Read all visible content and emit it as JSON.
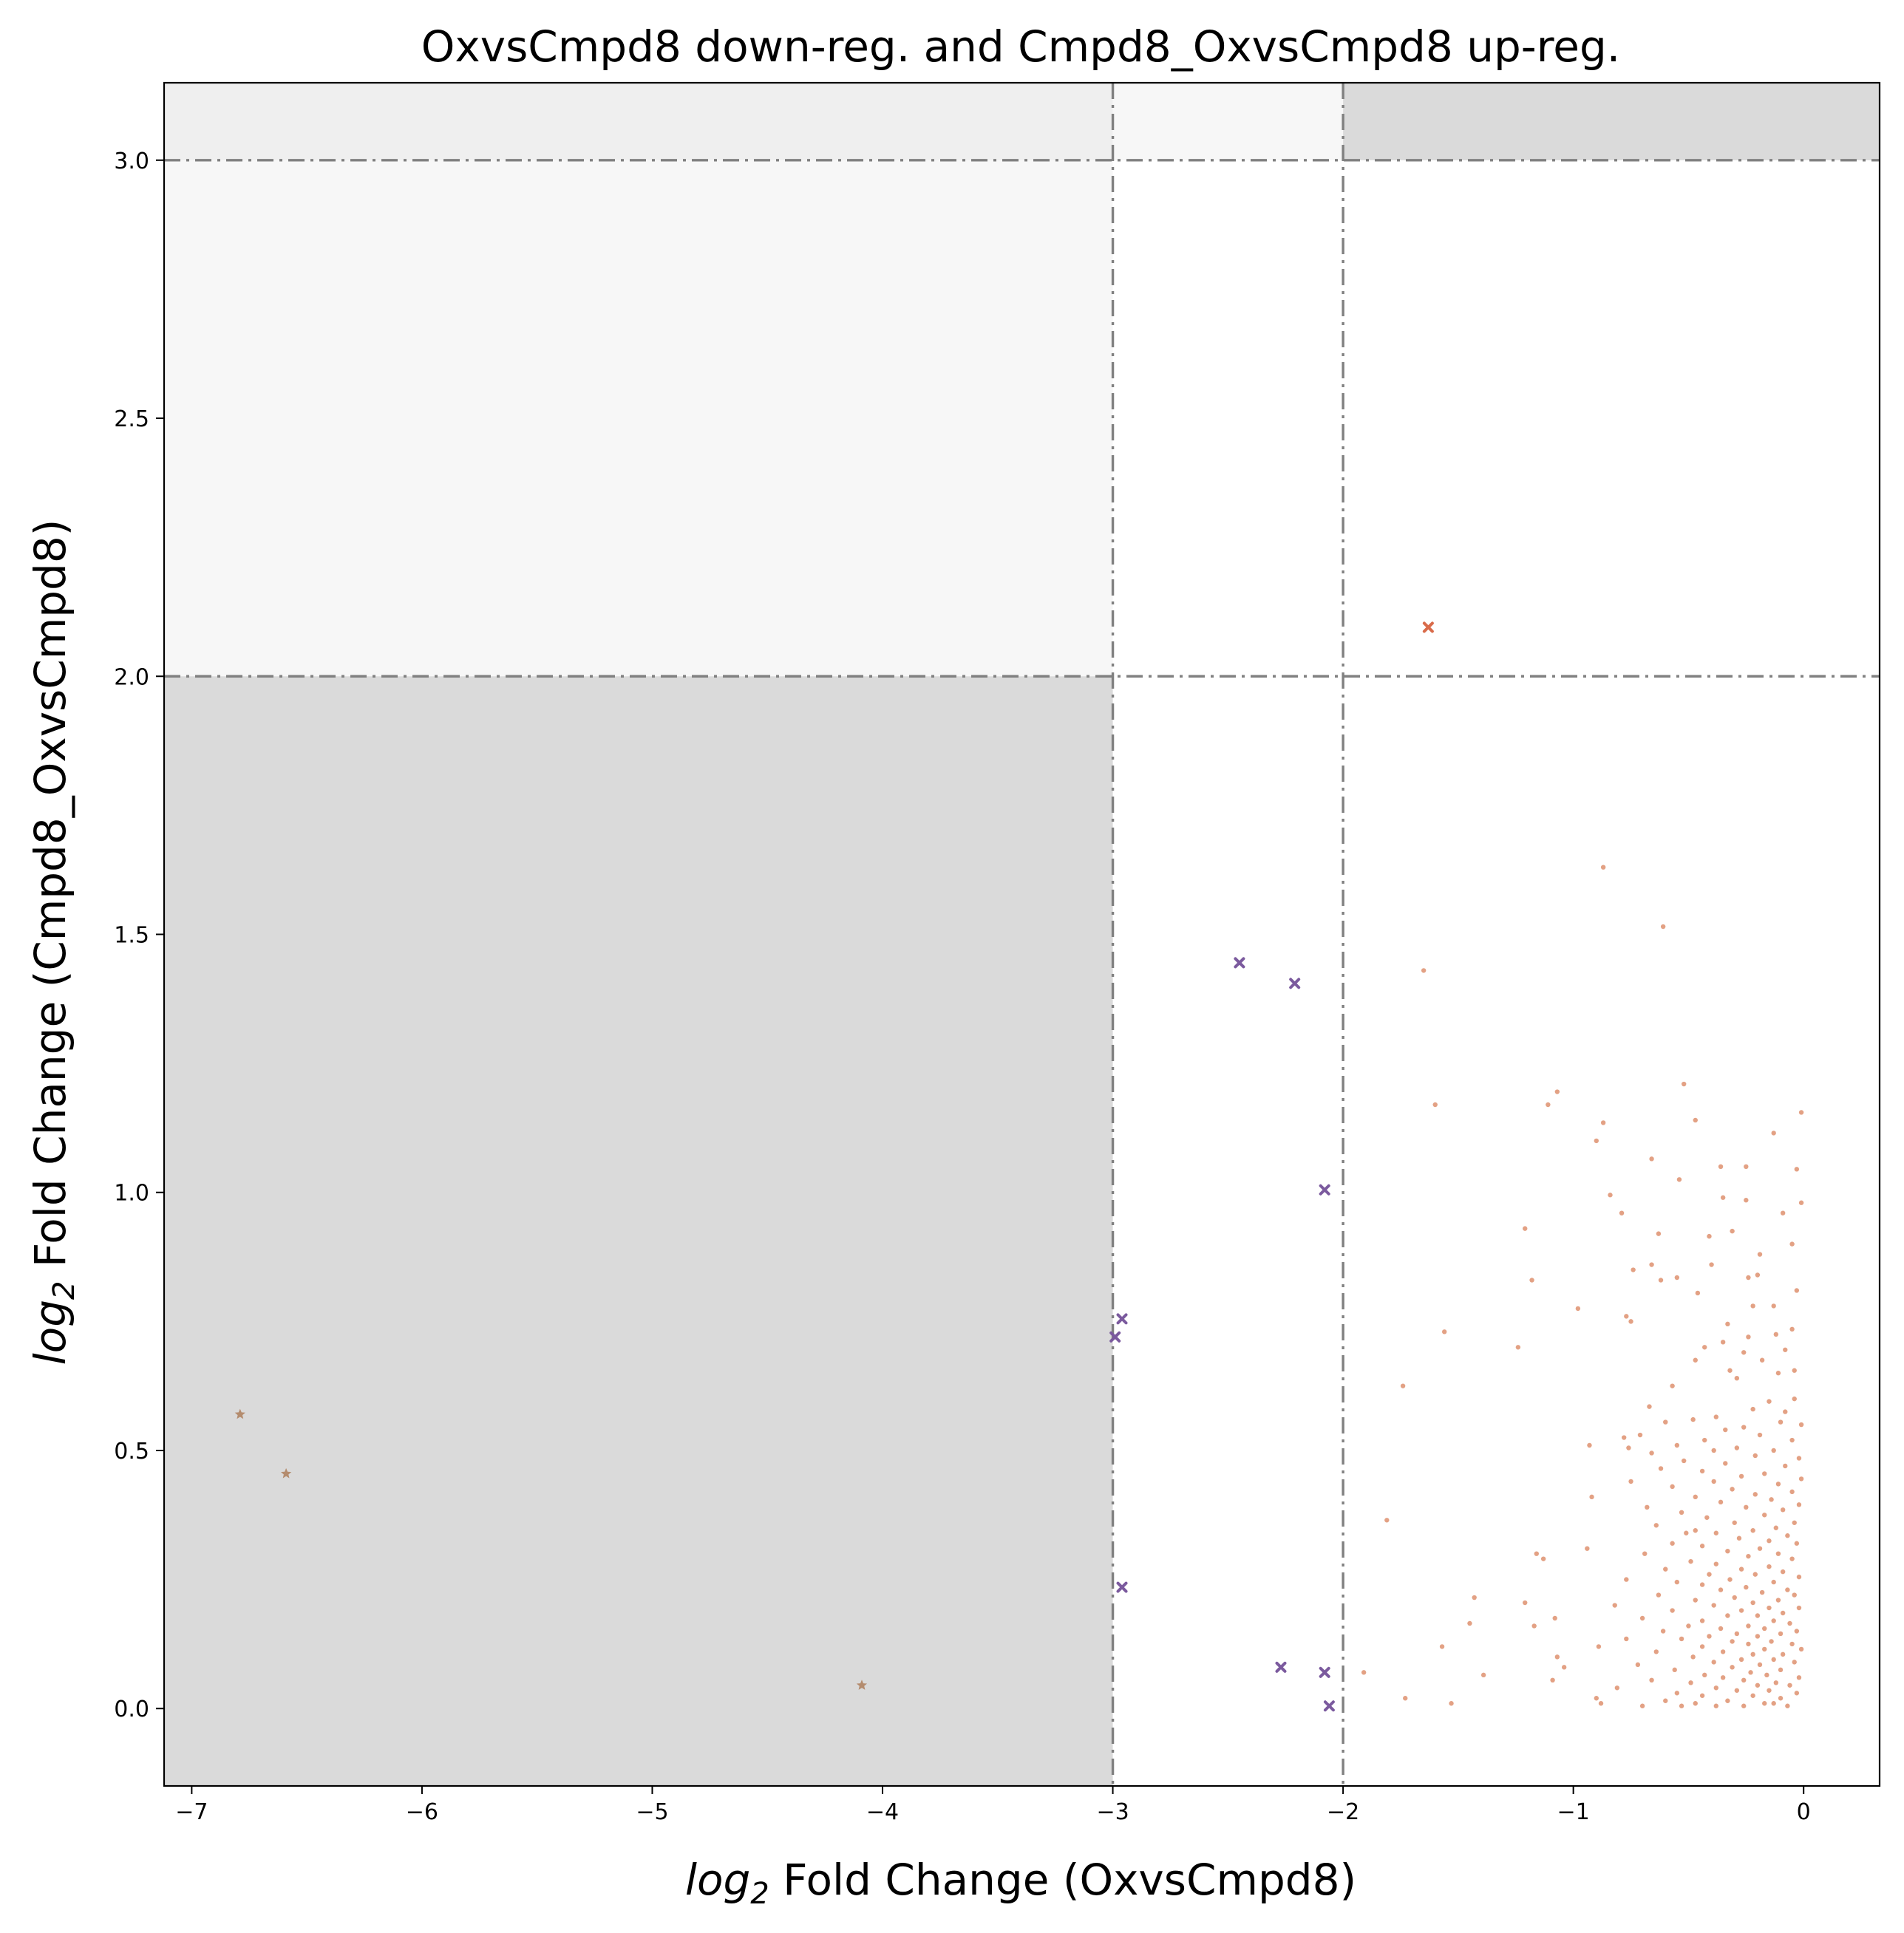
{
  "chart_data": {
    "type": "scatter",
    "title": "OxvsCmpd8 down-reg. and Cmpd8_OxvsCmpd8 up-reg.",
    "xlabel": {
      "log_text": "log",
      "subscript": "2",
      "rest": " Fold Change (OxvsCmpd8)"
    },
    "ylabel": {
      "log_text": "log",
      "subscript": "2",
      "rest": " Fold Change (Cmpd8_OxvsCmpd8)"
    },
    "xlim": [
      -7.12,
      0.33
    ],
    "ylim": [
      -0.15,
      3.15
    ],
    "xticks": [
      -7,
      -6,
      -5,
      -4,
      -3,
      -2,
      -1,
      0
    ],
    "xtick_labels": [
      "−7",
      "−6",
      "−5",
      "−4",
      "−3",
      "−2",
      "−1",
      "0"
    ],
    "yticks": [
      0.0,
      0.5,
      1.0,
      1.5,
      2.0,
      2.5,
      3.0
    ],
    "ytick_labels": [
      "0.0",
      "0.5",
      "1.0",
      "1.5",
      "2.0",
      "2.5",
      "3.0"
    ],
    "grid": false,
    "thresholds": {
      "x": [
        -3,
        -2
      ],
      "y": [
        2,
        3
      ]
    },
    "regions": [
      {
        "x": [
          -7.12,
          -3
        ],
        "y": [
          3,
          3.15
        ],
        "color": "#efefef"
      },
      {
        "x": [
          -3,
          -2
        ],
        "y": [
          3,
          3.15
        ],
        "color": "#f7f7f7"
      },
      {
        "x": [
          -2,
          0.33
        ],
        "y": [
          3,
          3.15
        ],
        "color": "#dadada"
      },
      {
        "x": [
          -7.12,
          -3
        ],
        "y": [
          2,
          3
        ],
        "color": "#f7f7f7"
      },
      {
        "x": [
          -7.12,
          -3
        ],
        "y": [
          -0.15,
          2
        ],
        "color": "#dadada"
      }
    ],
    "colors": {
      "orange": "#d9825b",
      "orange_highlight": "#d96b4a",
      "purple": "#7b5a9e",
      "tan": "#b48c6e",
      "threshold_line": "#808080"
    },
    "series": [
      {
        "marker": "star",
        "color": "#b48c6e",
        "points": [
          [
            -6.79,
            0.57
          ],
          [
            -6.59,
            0.455
          ],
          [
            -4.09,
            0.045
          ]
        ]
      },
      {
        "marker": "x",
        "color": "#7b5a9e",
        "points": [
          [
            -2.45,
            1.445
          ],
          [
            -2.21,
            1.405
          ],
          [
            -2.08,
            1.005
          ],
          [
            -2.96,
            0.755
          ],
          [
            -2.99,
            0.72
          ],
          [
            -2.96,
            0.235
          ],
          [
            -2.27,
            0.08
          ],
          [
            -2.08,
            0.07
          ],
          [
            -2.06,
            0.005
          ]
        ]
      },
      {
        "marker": "x",
        "color": "#d96b4a",
        "points": [
          [
            -1.63,
            2.095
          ]
        ]
      },
      {
        "marker": "dot",
        "color": "#d9825b",
        "points": [
          [
            -0.87,
            1.63
          ],
          [
            -0.61,
            1.515
          ],
          [
            -1.65,
            1.43
          ],
          [
            -0.52,
            1.21
          ],
          [
            -1.07,
            1.195
          ],
          [
            -1.6,
            1.17
          ],
          [
            -1.11,
            1.17
          ],
          [
            -0.01,
            1.155
          ],
          [
            -0.47,
            1.14
          ],
          [
            -0.87,
            1.135
          ],
          [
            -0.13,
            1.115
          ],
          [
            -0.9,
            1.1
          ],
          [
            -0.66,
            1.065
          ],
          [
            -0.36,
            1.05
          ],
          [
            -0.25,
            1.05
          ],
          [
            -0.03,
            1.045
          ],
          [
            -0.54,
            1.025
          ],
          [
            -0.84,
            0.995
          ],
          [
            -0.35,
            0.99
          ],
          [
            -0.25,
            0.985
          ],
          [
            -0.01,
            0.98
          ],
          [
            -0.79,
            0.96
          ],
          [
            -0.09,
            0.96
          ],
          [
            -1.21,
            0.93
          ],
          [
            -0.31,
            0.925
          ],
          [
            -0.63,
            0.92
          ],
          [
            -0.41,
            0.915
          ],
          [
            -0.05,
            0.9
          ],
          [
            -0.19,
            0.88
          ],
          [
            -0.4,
            0.86
          ],
          [
            -0.74,
            0.85
          ],
          [
            -0.66,
            0.86
          ],
          [
            -0.24,
            0.835
          ],
          [
            -0.55,
            0.835
          ],
          [
            -0.62,
            0.83
          ],
          [
            -0.2,
            0.84
          ],
          [
            -1.18,
            0.83
          ],
          [
            -0.03,
            0.81
          ],
          [
            -0.46,
            0.805
          ],
          [
            -0.98,
            0.775
          ],
          [
            -0.13,
            0.78
          ],
          [
            -0.22,
            0.78
          ],
          [
            -0.77,
            0.76
          ],
          [
            -0.75,
            0.75
          ],
          [
            -0.33,
            0.745
          ],
          [
            -0.05,
            0.735
          ],
          [
            -1.56,
            0.73
          ],
          [
            -0.12,
            0.725
          ],
          [
            -0.24,
            0.72
          ],
          [
            -0.35,
            0.71
          ],
          [
            -1.24,
            0.7
          ],
          [
            -0.43,
            0.7
          ],
          [
            -0.08,
            0.695
          ],
          [
            -0.26,
            0.69
          ],
          [
            -0.18,
            0.675
          ],
          [
            -0.47,
            0.675
          ],
          [
            -0.32,
            0.655
          ],
          [
            -0.04,
            0.655
          ],
          [
            -0.11,
            0.65
          ],
          [
            -0.29,
            0.64
          ],
          [
            -1.74,
            0.625
          ],
          [
            -0.57,
            0.625
          ],
          [
            -0.04,
            0.6
          ],
          [
            -0.15,
            0.595
          ],
          [
            -0.67,
            0.585
          ],
          [
            -0.22,
            0.58
          ],
          [
            -0.08,
            0.575
          ],
          [
            -0.38,
            0.565
          ],
          [
            -0.48,
            0.56
          ],
          [
            -0.6,
            0.555
          ],
          [
            -0.1,
            0.555
          ],
          [
            -0.01,
            0.55
          ],
          [
            -0.26,
            0.545
          ],
          [
            -0.34,
            0.54
          ],
          [
            -0.71,
            0.53
          ],
          [
            -0.19,
            0.53
          ],
          [
            -0.78,
            0.525
          ],
          [
            -0.43,
            0.52
          ],
          [
            -0.05,
            0.52
          ],
          [
            -0.55,
            0.51
          ],
          [
            -0.93,
            0.51
          ],
          [
            -0.76,
            0.505
          ],
          [
            -0.29,
            0.505
          ],
          [
            -0.13,
            0.5
          ],
          [
            -0.39,
            0.5
          ],
          [
            -0.66,
            0.495
          ],
          [
            -0.21,
            0.49
          ],
          [
            -0.02,
            0.485
          ],
          [
            -0.52,
            0.48
          ],
          [
            -0.34,
            0.475
          ],
          [
            -0.08,
            0.47
          ],
          [
            -0.62,
            0.465
          ],
          [
            -0.44,
            0.46
          ],
          [
            -0.17,
            0.455
          ],
          [
            -0.27,
            0.45
          ],
          [
            -0.01,
            0.445
          ],
          [
            -0.75,
            0.44
          ],
          [
            -0.39,
            0.44
          ],
          [
            -0.11,
            0.435
          ],
          [
            -0.57,
            0.43
          ],
          [
            -0.31,
            0.425
          ],
          [
            -0.05,
            0.42
          ],
          [
            -0.92,
            0.41
          ],
          [
            -0.21,
            0.415
          ],
          [
            -0.47,
            0.41
          ],
          [
            -0.14,
            0.405
          ],
          [
            -0.36,
            0.4
          ],
          [
            -0.02,
            0.395
          ],
          [
            -0.68,
            0.39
          ],
          [
            -0.25,
            0.39
          ],
          [
            -0.09,
            0.385
          ],
          [
            -0.53,
            0.38
          ],
          [
            -0.17,
            0.375
          ],
          [
            -0.42,
            0.37
          ],
          [
            -1.81,
            0.365
          ],
          [
            -0.3,
            0.36
          ],
          [
            -0.04,
            0.36
          ],
          [
            -0.64,
            0.355
          ],
          [
            -0.12,
            0.35
          ],
          [
            -0.47,
            0.345
          ],
          [
            -0.22,
            0.345
          ],
          [
            -0.38,
            0.34
          ],
          [
            -0.51,
            0.34
          ],
          [
            -0.07,
            0.335
          ],
          [
            -0.28,
            0.33
          ],
          [
            -0.15,
            0.325
          ],
          [
            -0.57,
            0.32
          ],
          [
            -0.03,
            0.32
          ],
          [
            -0.44,
            0.315
          ],
          [
            -0.94,
            0.31
          ],
          [
            -0.19,
            0.31
          ],
          [
            -0.33,
            0.305
          ],
          [
            -0.11,
            0.3
          ],
          [
            -0.69,
            0.3
          ],
          [
            -1.16,
            0.3
          ],
          [
            -0.24,
            0.295
          ],
          [
            -1.13,
            0.29
          ],
          [
            -0.05,
            0.29
          ],
          [
            -0.49,
            0.285
          ],
          [
            -0.38,
            0.28
          ],
          [
            -0.15,
            0.275
          ],
          [
            -0.27,
            0.27
          ],
          [
            -0.6,
            0.27
          ],
          [
            -0.09,
            0.265
          ],
          [
            -0.41,
            0.26
          ],
          [
            -0.21,
            0.26
          ],
          [
            -0.02,
            0.255
          ],
          [
            -0.77,
            0.25
          ],
          [
            -0.32,
            0.25
          ],
          [
            -0.13,
            0.245
          ],
          [
            -0.55,
            0.245
          ],
          [
            -0.44,
            0.24
          ],
          [
            -0.25,
            0.235
          ],
          [
            -0.07,
            0.23
          ],
          [
            -0.36,
            0.23
          ],
          [
            -0.18,
            0.225
          ],
          [
            -0.63,
            0.22
          ],
          [
            -0.04,
            0.22
          ],
          [
            -1.43,
            0.215
          ],
          [
            -0.3,
            0.215
          ],
          [
            -0.47,
            0.21
          ],
          [
            -0.11,
            0.21
          ],
          [
            -1.21,
            0.205
          ],
          [
            -0.22,
            0.205
          ],
          [
            -0.82,
            0.2
          ],
          [
            -0.39,
            0.2
          ],
          [
            -0.15,
            0.195
          ],
          [
            -0.02,
            0.195
          ],
          [
            -0.57,
            0.19
          ],
          [
            -0.27,
            0.19
          ],
          [
            -0.09,
            0.185
          ],
          [
            -0.33,
            0.18
          ],
          [
            -0.2,
            0.18
          ],
          [
            -0.7,
            0.175
          ],
          [
            -1.08,
            0.175
          ],
          [
            -0.44,
            0.17
          ],
          [
            -0.13,
            0.17
          ],
          [
            -1.45,
            0.165
          ],
          [
            -0.06,
            0.165
          ],
          [
            -0.24,
            0.16
          ],
          [
            -0.5,
            0.16
          ],
          [
            -1.17,
            0.16
          ],
          [
            -0.36,
            0.155
          ],
          [
            -0.17,
            0.155
          ],
          [
            -0.03,
            0.15
          ],
          [
            -0.61,
            0.15
          ],
          [
            -0.29,
            0.145
          ],
          [
            -0.1,
            0.145
          ],
          [
            -0.41,
            0.14
          ],
          [
            -0.2,
            0.14
          ],
          [
            -0.77,
            0.135
          ],
          [
            -0.53,
            0.135
          ],
          [
            -0.14,
            0.13
          ],
          [
            -0.31,
            0.13
          ],
          [
            -0.05,
            0.125
          ],
          [
            -0.24,
            0.125
          ],
          [
            -0.89,
            0.12
          ],
          [
            -0.44,
            0.12
          ],
          [
            -1.57,
            0.12
          ],
          [
            -0.17,
            0.115
          ],
          [
            -0.01,
            0.115
          ],
          [
            -0.35,
            0.11
          ],
          [
            -0.64,
            0.11
          ],
          [
            -0.22,
            0.105
          ],
          [
            -0.09,
            0.105
          ],
          [
            -1.07,
            0.1
          ],
          [
            -0.48,
            0.1
          ],
          [
            -0.27,
            0.095
          ],
          [
            -0.13,
            0.095
          ],
          [
            -0.39,
            0.09
          ],
          [
            -0.04,
            0.09
          ],
          [
            -0.72,
            0.085
          ],
          [
            -0.19,
            0.085
          ],
          [
            -1.04,
            0.08
          ],
          [
            -0.31,
            0.08
          ],
          [
            -0.56,
            0.075
          ],
          [
            -0.1,
            0.075
          ],
          [
            -0.23,
            0.07
          ],
          [
            -1.91,
            0.07
          ],
          [
            -0.43,
            0.065
          ],
          [
            -0.16,
            0.065
          ],
          [
            -1.39,
            0.065
          ],
          [
            -0.02,
            0.06
          ],
          [
            -0.35,
            0.06
          ],
          [
            -0.66,
            0.055
          ],
          [
            -0.26,
            0.055
          ],
          [
            -1.09,
            0.055
          ],
          [
            -0.12,
            0.05
          ],
          [
            -0.49,
            0.05
          ],
          [
            -0.2,
            0.045
          ],
          [
            -0.06,
            0.045
          ],
          [
            -0.38,
            0.04
          ],
          [
            -0.81,
            0.04
          ],
          [
            -0.29,
            0.035
          ],
          [
            -0.15,
            0.035
          ],
          [
            -0.55,
            0.03
          ],
          [
            -0.03,
            0.03
          ],
          [
            -0.44,
            0.025
          ],
          [
            -0.22,
            0.025
          ],
          [
            -0.9,
            0.02
          ],
          [
            -0.1,
            0.02
          ],
          [
            -1.73,
            0.02
          ],
          [
            -0.33,
            0.015
          ],
          [
            -0.6,
            0.015
          ],
          [
            -0.17,
            0.01
          ],
          [
            -1.53,
            0.01
          ],
          [
            -0.88,
            0.01
          ],
          [
            -0.47,
            0.01
          ],
          [
            -0.26,
            0.005
          ],
          [
            -0.07,
            0.005
          ],
          [
            -0.38,
            0.005
          ],
          [
            -0.7,
            0.005
          ],
          [
            -0.13,
            0.01
          ],
          [
            -0.53,
            0.005
          ]
        ]
      }
    ]
  }
}
